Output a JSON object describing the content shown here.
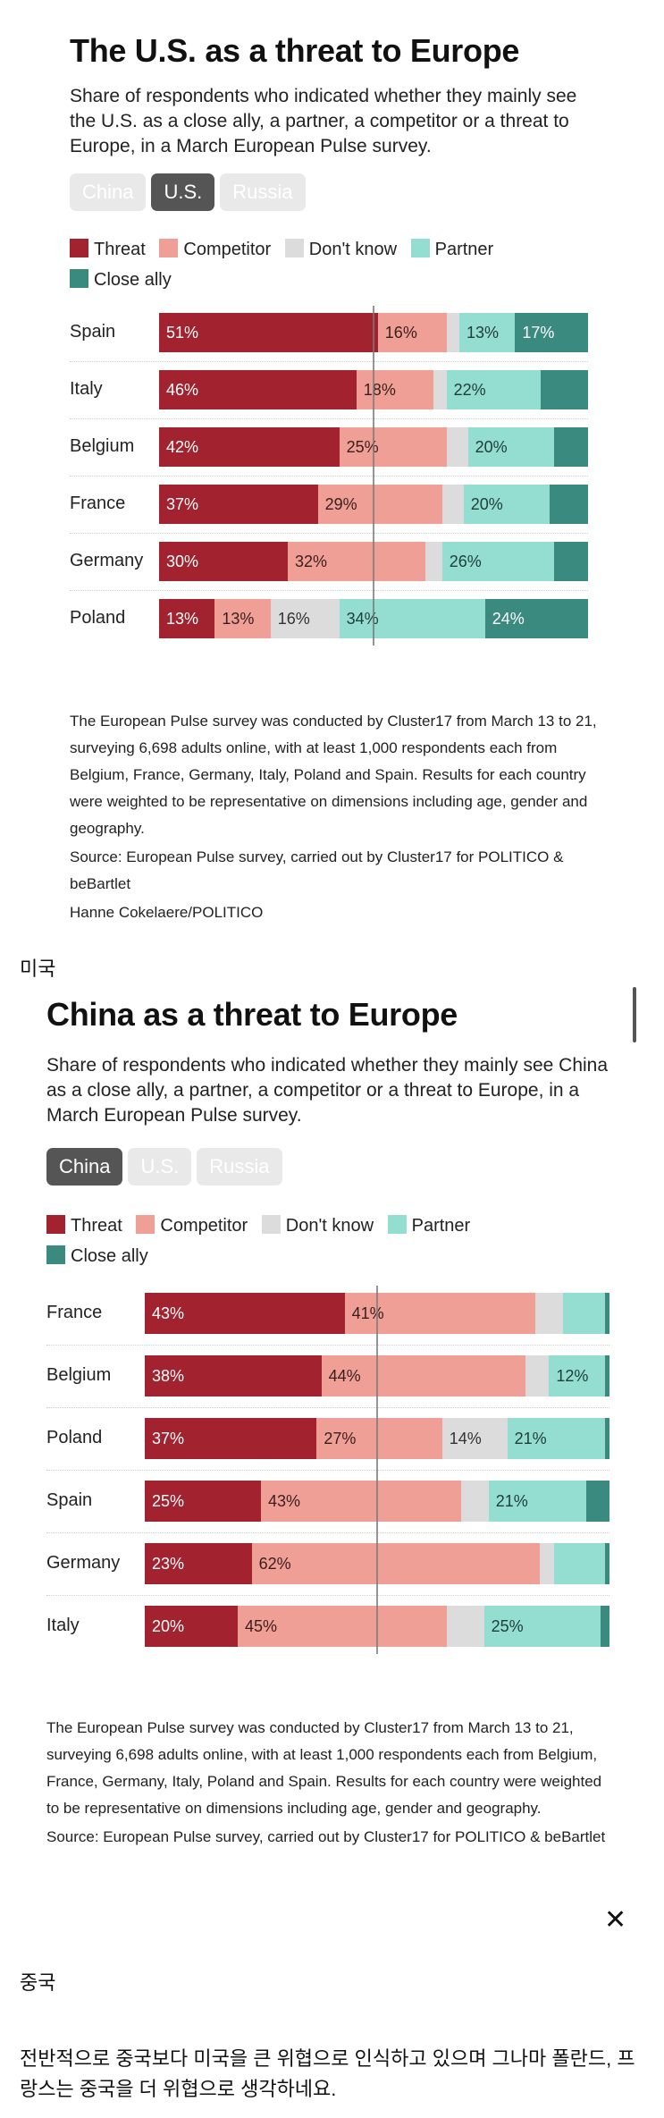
{
  "colors": {
    "threat": "#a3222f",
    "competitor": "#ef9f95",
    "dontknow": "#dcdcdc",
    "partner": "#93ddd1",
    "closeally": "#3a8a80"
  },
  "legend": {
    "threat": "Threat",
    "competitor": "Competitor",
    "dontknow": "Don't know",
    "partner": "Partner",
    "closeally": "Close ally"
  },
  "tabs": [
    "China",
    "U.S.",
    "Russia"
  ],
  "us_card": {
    "title": "The U.S. as a threat to Europe",
    "subtitle": "Share of respondents who indicated whether they mainly see the U.S. as a close ally, a partner, a competitor or a threat to Europe, in a March European Pulse survey.",
    "active_tab": "U.S.",
    "notes": [
      "The European Pulse survey was conducted by Cluster17 from March 13 to 21, surveying 6,698 adults online, with at least 1,000 respondents each from Belgium, France, Germany, Italy, Poland and Spain. Results for each country were weighted to be representative on dimensions including age, gender and geography.",
      "Source: European Pulse survey, carried out by Cluster17 for POLITICO & beBartlet",
      "Hanne Cokelaere/POLITICO"
    ]
  },
  "caption_us": "미국",
  "china_card": {
    "title": "China as a threat to Europe",
    "subtitle": "Share of respondents who indicated whether they mainly see China as a close ally, a partner, a competitor or a threat to Europe, in a March European Pulse survey.",
    "active_tab": "China",
    "notes": [
      "The European Pulse survey was conducted by Cluster17 from March 13 to 21, surveying 6,698 adults online, with at least 1,000 respondents each from Belgium, France, Germany, Italy, Poland and Spain. Results for each country were weighted to be representative on dimensions including age, gender and geography.",
      "Source: European Pulse survey, carried out by Cluster17 for POLITICO & beBartlet"
    ]
  },
  "caption_china": "중국",
  "comment": "전반적으로 중국보다 미국을 큰 위협으로 인식하고 있으며 그나마 폴란드, 프랑스는 중국을 더 위협으로 생각하네요.",
  "close_icon": "close-icon",
  "chart_data": [
    {
      "type": "bar",
      "stacked": true,
      "orientation": "horizontal",
      "title": "The U.S. as a threat to Europe",
      "categories": [
        "Spain",
        "Italy",
        "Belgium",
        "France",
        "Germany",
        "Poland"
      ],
      "series": [
        {
          "name": "Threat",
          "values": [
            51,
            46,
            42,
            37,
            30,
            13
          ],
          "labels": [
            "51%",
            "46%",
            "42%",
            "37%",
            "30%",
            "13%"
          ]
        },
        {
          "name": "Competitor",
          "values": [
            16,
            18,
            25,
            29,
            32,
            13
          ],
          "labels": [
            "16%",
            "18%",
            "25%",
            "29%",
            "32%",
            "13%"
          ]
        },
        {
          "name": "Don't know",
          "values": [
            3,
            3,
            5,
            5,
            4,
            16
          ],
          "labels": [
            "",
            "",
            "",
            "",
            "",
            "16%"
          ]
        },
        {
          "name": "Partner",
          "values": [
            13,
            22,
            20,
            20,
            26,
            34
          ],
          "labels": [
            "13%",
            "22%",
            "20%",
            "20%",
            "26%",
            "34%"
          ]
        },
        {
          "name": "Close ally",
          "values": [
            17,
            11,
            8,
            9,
            8,
            24
          ],
          "labels": [
            "17%",
            "",
            "",
            "",
            "",
            "24%"
          ]
        }
      ],
      "xlim": [
        0,
        100
      ],
      "midline": 50,
      "legend": "top"
    },
    {
      "type": "bar",
      "stacked": true,
      "orientation": "horizontal",
      "title": "China as a threat to Europe",
      "categories": [
        "France",
        "Belgium",
        "Poland",
        "Spain",
        "Germany",
        "Italy"
      ],
      "series": [
        {
          "name": "Threat",
          "values": [
            43,
            38,
            37,
            25,
            23,
            20
          ],
          "labels": [
            "43%",
            "38%",
            "37%",
            "25%",
            "23%",
            "20%"
          ]
        },
        {
          "name": "Competitor",
          "values": [
            41,
            44,
            27,
            43,
            62,
            45
          ],
          "labels": [
            "41%",
            "44%",
            "27%",
            "43%",
            "62%",
            "45%"
          ]
        },
        {
          "name": "Don't know",
          "values": [
            6,
            5,
            14,
            6,
            3,
            8
          ],
          "labels": [
            "",
            "",
            "14%",
            "",
            "",
            ""
          ]
        },
        {
          "name": "Partner",
          "values": [
            9,
            12,
            21,
            21,
            11,
            25
          ],
          "labels": [
            "",
            "12%",
            "21%",
            "21%",
            "",
            "25%"
          ]
        },
        {
          "name": "Close ally",
          "values": [
            1,
            1,
            1,
            5,
            1,
            2
          ],
          "labels": [
            "",
            "",
            "",
            "",
            "",
            ""
          ]
        }
      ],
      "xlim": [
        0,
        100
      ],
      "midline": 50,
      "legend": "top"
    }
  ]
}
